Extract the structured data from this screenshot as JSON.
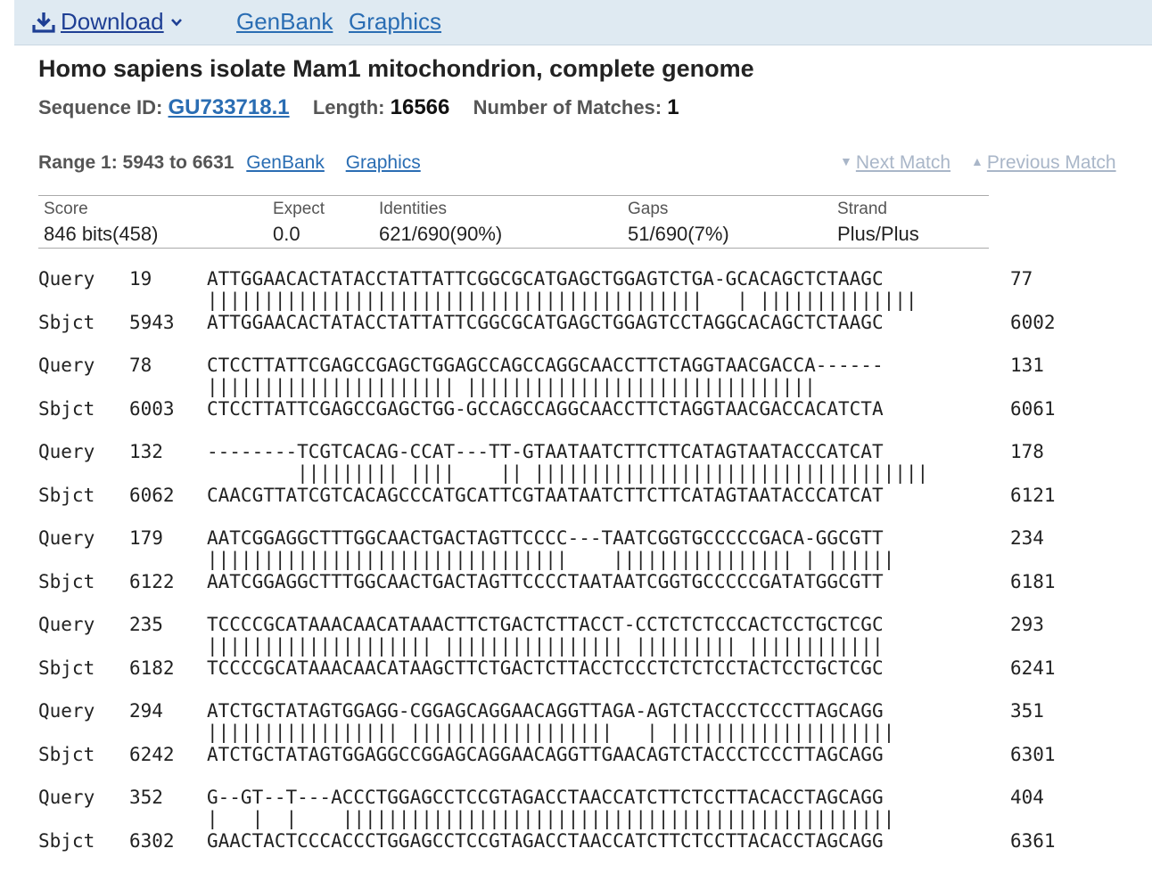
{
  "toolbar": {
    "download_label": "Download",
    "genbank_label": "GenBank",
    "graphics_label": "Graphics",
    "download_icon": "download-icon",
    "chevron_icon": "chevron-down-icon"
  },
  "header": {
    "title": "Homo sapiens isolate Mam1 mitochondrion, complete genome",
    "sequence_id_label": "Sequence ID:",
    "sequence_id": "GU733718.1",
    "length_label": "Length:",
    "length": "16566",
    "matches_label": "Number of Matches:",
    "matches": "1"
  },
  "range": {
    "label": "Range 1: 5943 to 6631",
    "genbank_label": "GenBank",
    "graphics_label": "Graphics",
    "next_match_label": "Next Match",
    "previous_match_label": "Previous Match"
  },
  "stats": [
    {
      "header": "Score",
      "value": "846 bits(458)"
    },
    {
      "header": "Expect",
      "value": "0.0"
    },
    {
      "header": "Identities",
      "value": "621/690(90%)"
    },
    {
      "header": "Gaps",
      "value": "51/690(7%)"
    },
    {
      "header": "Strand",
      "value": "Plus/Plus"
    }
  ],
  "colors": {
    "toolbar_bg": "#dfeaf2",
    "link": "#2a6db3",
    "download_link": "#1e3f94",
    "disabled_nav": "#a9b6c8"
  },
  "alignment": [
    {
      "query_label": "Query",
      "query_start": "19",
      "query_seq": "ATTGGAACACTATACCTATTATTCGGCGCATGAGCTGGAGTCTGA-GCACAGCTCTAAGC",
      "query_end": "77",
      "match": "||||||||||||||||||||||||||||||||||||||||||||   | ||||||||||||||",
      "sbjct_label": "Sbjct",
      "sbjct_start": "5943",
      "sbjct_seq": "ATTGGAACACTATACCTATTATTCGGCGCATGAGCTGGAGTCCTAGGCACAGCTCTAAGC",
      "sbjct_end": "6002"
    },
    {
      "query_label": "Query",
      "query_start": "78",
      "query_seq": "CTCCTTATTCGAGCCGAGCTGGAGCCAGCCAGGCAACCTTCTAGGTAACGACCA------",
      "query_end": "131",
      "match": "|||||||||||||||||||||| |||||||||||||||||||||||||||||||",
      "sbjct_label": "Sbjct",
      "sbjct_start": "6003",
      "sbjct_seq": "CTCCTTATTCGAGCCGAGCTGG-GCCAGCCAGGCAACCTTCTAGGTAACGACCACATCTA",
      "sbjct_end": "6061"
    },
    {
      "query_label": "Query",
      "query_start": "132",
      "query_seq": "--------TCGTCACAG-CCAT---TT-GTAATAATCTTCTTCATAGTAATACCCATCAT",
      "query_end": "178",
      "match": "        ||||||||| ||||    || |||||||||||||||||||||||||||||||||||",
      "sbjct_label": "Sbjct",
      "sbjct_start": "6062",
      "sbjct_seq": "CAACGTTATCGTCACAGCCCATGCATTCGTAATAATCTTCTTCATAGTAATACCCATCAT",
      "sbjct_end": "6121"
    },
    {
      "query_label": "Query",
      "query_start": "179",
      "query_seq": "AATCGGAGGCTTTGGCAACTGACTAGTTCCCC---TAATCGGTGCCCCCGACA-GGCGTT",
      "query_end": "234",
      "match": "||||||||||||||||||||||||||||||||    |||||||||||||||| | ||||||",
      "sbjct_label": "Sbjct",
      "sbjct_start": "6122",
      "sbjct_seq": "AATCGGAGGCTTTGGCAACTGACTAGTTCCCCTAATAATCGGTGCCCCCGATATGGCGTT",
      "sbjct_end": "6181"
    },
    {
      "query_label": "Query",
      "query_start": "235",
      "query_seq": "TCCCCGCATAAACAACATAAACTTCTGACTCTTACCT-CCTCTCTCCCACTCCTGCTCGC",
      "query_end": "293",
      "match": "|||||||||||||||||||| |||||||||||||||| ||||||||| ||||||||||||",
      "sbjct_label": "Sbjct",
      "sbjct_start": "6182",
      "sbjct_seq": "TCCCCGCATAAACAACATAAGCTTCTGACTCTTACCTCCCTCTCTCCTACTCCTGCTCGC",
      "sbjct_end": "6241"
    },
    {
      "query_label": "Query",
      "query_start": "294",
      "query_seq": "ATCTGCTATAGTGGAGG-CGGAGCAGGAACAGGTTAGA-AGTCTACCCTCCCTTAGCAGG",
      "query_end": "351",
      "match": "||||||||||||||||| ||||||||||||||||||   | ||||||||||||||||||||",
      "sbjct_label": "Sbjct",
      "sbjct_start": "6242",
      "sbjct_seq": "ATCTGCTATAGTGGAGGCCGGAGCAGGAACAGGTTGAACAGTCTACCCTCCCTTAGCAGG",
      "sbjct_end": "6301"
    },
    {
      "query_label": "Query",
      "query_start": "352",
      "query_seq": "G--GT--T---ACCCTGGAGCCTCCGTAGACCTAACCATCTTCTCCTTACACCTAGCAGG",
      "query_end": "404",
      "match": "|   |  |    |||||||||||||||||||||||||||||||||||||||||||||||||",
      "sbjct_label": "Sbjct",
      "sbjct_start": "6302",
      "sbjct_seq": "GAACTACTCCCACCCTGGAGCCTCCGTAGACCTAACCATCTTCTCCTTACACCTAGCAGG",
      "sbjct_end": "6361"
    }
  ]
}
